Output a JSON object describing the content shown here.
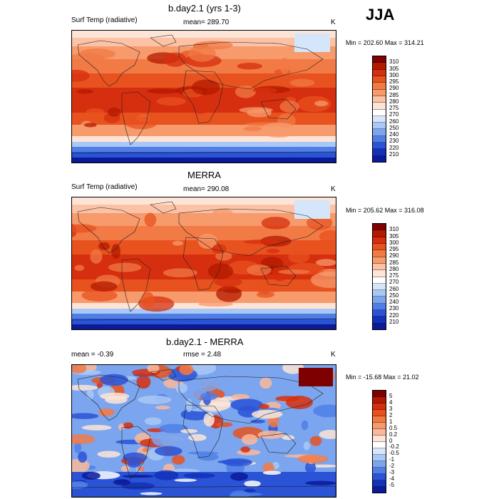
{
  "season": "JJA",
  "panels": [
    {
      "title": "b.day2.1 (yrs 1-3)",
      "left_label": "Surf Temp (radiative)",
      "mid_label": "mean= 289.70",
      "units": "K",
      "minmax": "Min = 202.60 Max = 314.21",
      "colorbar_labels": [
        "310",
        "305",
        "300",
        "295",
        "290",
        "285",
        "280",
        "275",
        "270",
        "260",
        "250",
        "240",
        "230",
        "220",
        "210"
      ],
      "colorbar_colors": [
        "#7f0000",
        "#b31a00",
        "#d62f0f",
        "#e8521f",
        "#f27a45",
        "#f79a6c",
        "#fcc2a6",
        "#fde4d6",
        "#ffffff",
        "#d5e6fa",
        "#a9c8f5",
        "#7ba5ee",
        "#4f7fe6",
        "#2a53d6",
        "#1230b8",
        "#0a1a99"
      ],
      "map_type": "temp"
    },
    {
      "title": "MERRA",
      "left_label": "Surf Temp (radiative)",
      "mid_label": "mean= 290.08",
      "units": "K",
      "minmax": "Min = 205.62 Max = 316.08",
      "colorbar_labels": [
        "310",
        "305",
        "300",
        "295",
        "290",
        "285",
        "280",
        "275",
        "270",
        "260",
        "250",
        "240",
        "230",
        "220",
        "210"
      ],
      "colorbar_colors": [
        "#7f0000",
        "#b31a00",
        "#d62f0f",
        "#e8521f",
        "#f27a45",
        "#f79a6c",
        "#fcc2a6",
        "#fde4d6",
        "#ffffff",
        "#d5e6fa",
        "#a9c8f5",
        "#7ba5ee",
        "#4f7fe6",
        "#2a53d6",
        "#1230b8",
        "#0a1a99"
      ],
      "map_type": "temp"
    },
    {
      "title": "b.day2.1 - MERRA",
      "left_label": "mean =  -0.39",
      "mid_label": "rmse =   2.48",
      "units": "K",
      "minmax": "Min = -15.68 Max =  21.02",
      "colorbar_labels": [
        "5",
        "4",
        "3",
        "2",
        "1",
        "0.5",
        "0.2",
        "0",
        "-0.2",
        "-0.5",
        "-1",
        "-2",
        "-3",
        "-4",
        "-5"
      ],
      "colorbar_colors": [
        "#7f0000",
        "#b31a00",
        "#d62f0f",
        "#e8521f",
        "#f27a45",
        "#f79a6c",
        "#fcb99a",
        "#fde4d6",
        "#ffffff",
        "#d5e6fa",
        "#a9c8f5",
        "#7ba5ee",
        "#4f7fe6",
        "#2a53d6",
        "#1230b8",
        "#0a1a99"
      ],
      "map_type": "diff"
    }
  ]
}
